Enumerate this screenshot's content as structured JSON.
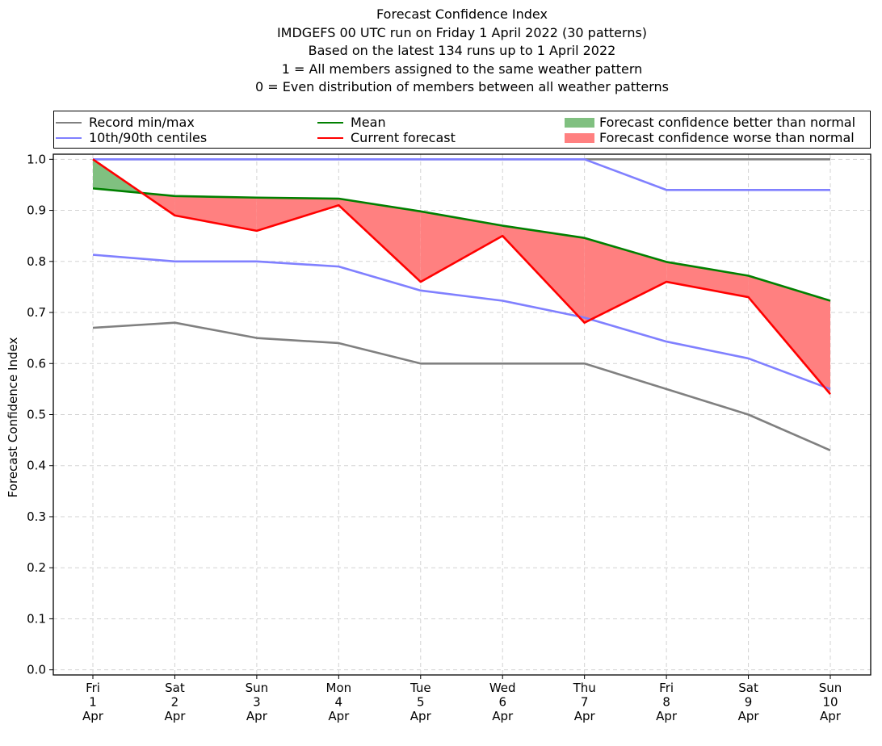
{
  "chart_data": {
    "type": "line",
    "title_lines": [
      "Forecast Confidence Index",
      "IMDGEFS 00 UTC run on Friday 1 April 2022 (30 patterns)",
      "Based on the latest 134 runs up to 1 April 2022",
      "1 = All members assigned to the same weather pattern",
      "0 = Even distribution of members between all weather patterns"
    ],
    "ylabel": "Forecast Confidence Index",
    "ylim": [
      -0.01,
      1.01
    ],
    "yticks": [
      "0.0",
      "0.1",
      "0.2",
      "0.3",
      "0.4",
      "0.5",
      "0.6",
      "0.7",
      "0.8",
      "0.9",
      "1.0"
    ],
    "grid": true,
    "categories": [
      [
        "Fri",
        "1",
        "Apr"
      ],
      [
        "Sat",
        "2",
        "Apr"
      ],
      [
        "Sun",
        "3",
        "Apr"
      ],
      [
        "Mon",
        "4",
        "Apr"
      ],
      [
        "Tue",
        "5",
        "Apr"
      ],
      [
        "Wed",
        "6",
        "Apr"
      ],
      [
        "Thu",
        "7",
        "Apr"
      ],
      [
        "Fri",
        "8",
        "Apr"
      ],
      [
        "Sat",
        "9",
        "Apr"
      ],
      [
        "Sun",
        "10",
        "Apr"
      ]
    ],
    "series": [
      {
        "name": "Record min",
        "color": "#808080",
        "values": [
          0.67,
          0.68,
          0.65,
          0.64,
          0.6,
          0.6,
          0.6,
          0.55,
          0.5,
          0.43
        ]
      },
      {
        "name": "Record max",
        "color": "#808080",
        "values": [
          1.0,
          1.0,
          1.0,
          1.0,
          1.0,
          1.0,
          1.0,
          1.0,
          1.0,
          1.0
        ]
      },
      {
        "name": "10th centile",
        "color": "#8080ff",
        "values": [
          0.813,
          0.8,
          0.8,
          0.79,
          0.743,
          0.723,
          0.69,
          0.643,
          0.61,
          0.55
        ]
      },
      {
        "name": "90th centile",
        "color": "#8080ff",
        "values": [
          1.0,
          1.0,
          1.0,
          1.0,
          1.0,
          1.0,
          1.0,
          0.94,
          0.94,
          0.94
        ]
      },
      {
        "name": "Mean",
        "color": "#008000",
        "values": [
          0.943,
          0.928,
          0.925,
          0.923,
          0.898,
          0.87,
          0.846,
          0.799,
          0.772,
          0.723
        ]
      },
      {
        "name": "Current forecast",
        "color": "#ff0000",
        "values": [
          1.0,
          0.89,
          0.86,
          0.91,
          0.76,
          0.85,
          0.68,
          0.76,
          0.73,
          0.54
        ]
      }
    ],
    "fill_better_color": "#80c080",
    "fill_worse_color": "#ff8080",
    "legend": {
      "placement": "top",
      "items": [
        {
          "label": "Record min/max",
          "kind": "line",
          "color": "#808080"
        },
        {
          "label": "Mean",
          "kind": "line",
          "color": "#008000"
        },
        {
          "label": "Forecast confidence better than normal",
          "kind": "patch",
          "color": "#80c080"
        },
        {
          "label": "10th/90th centiles",
          "kind": "line",
          "color": "#8080ff"
        },
        {
          "label": "Current forecast",
          "kind": "line",
          "color": "#ff0000"
        },
        {
          "label": "Forecast confidence worse than normal",
          "kind": "patch",
          "color": "#ff8080"
        }
      ]
    }
  }
}
